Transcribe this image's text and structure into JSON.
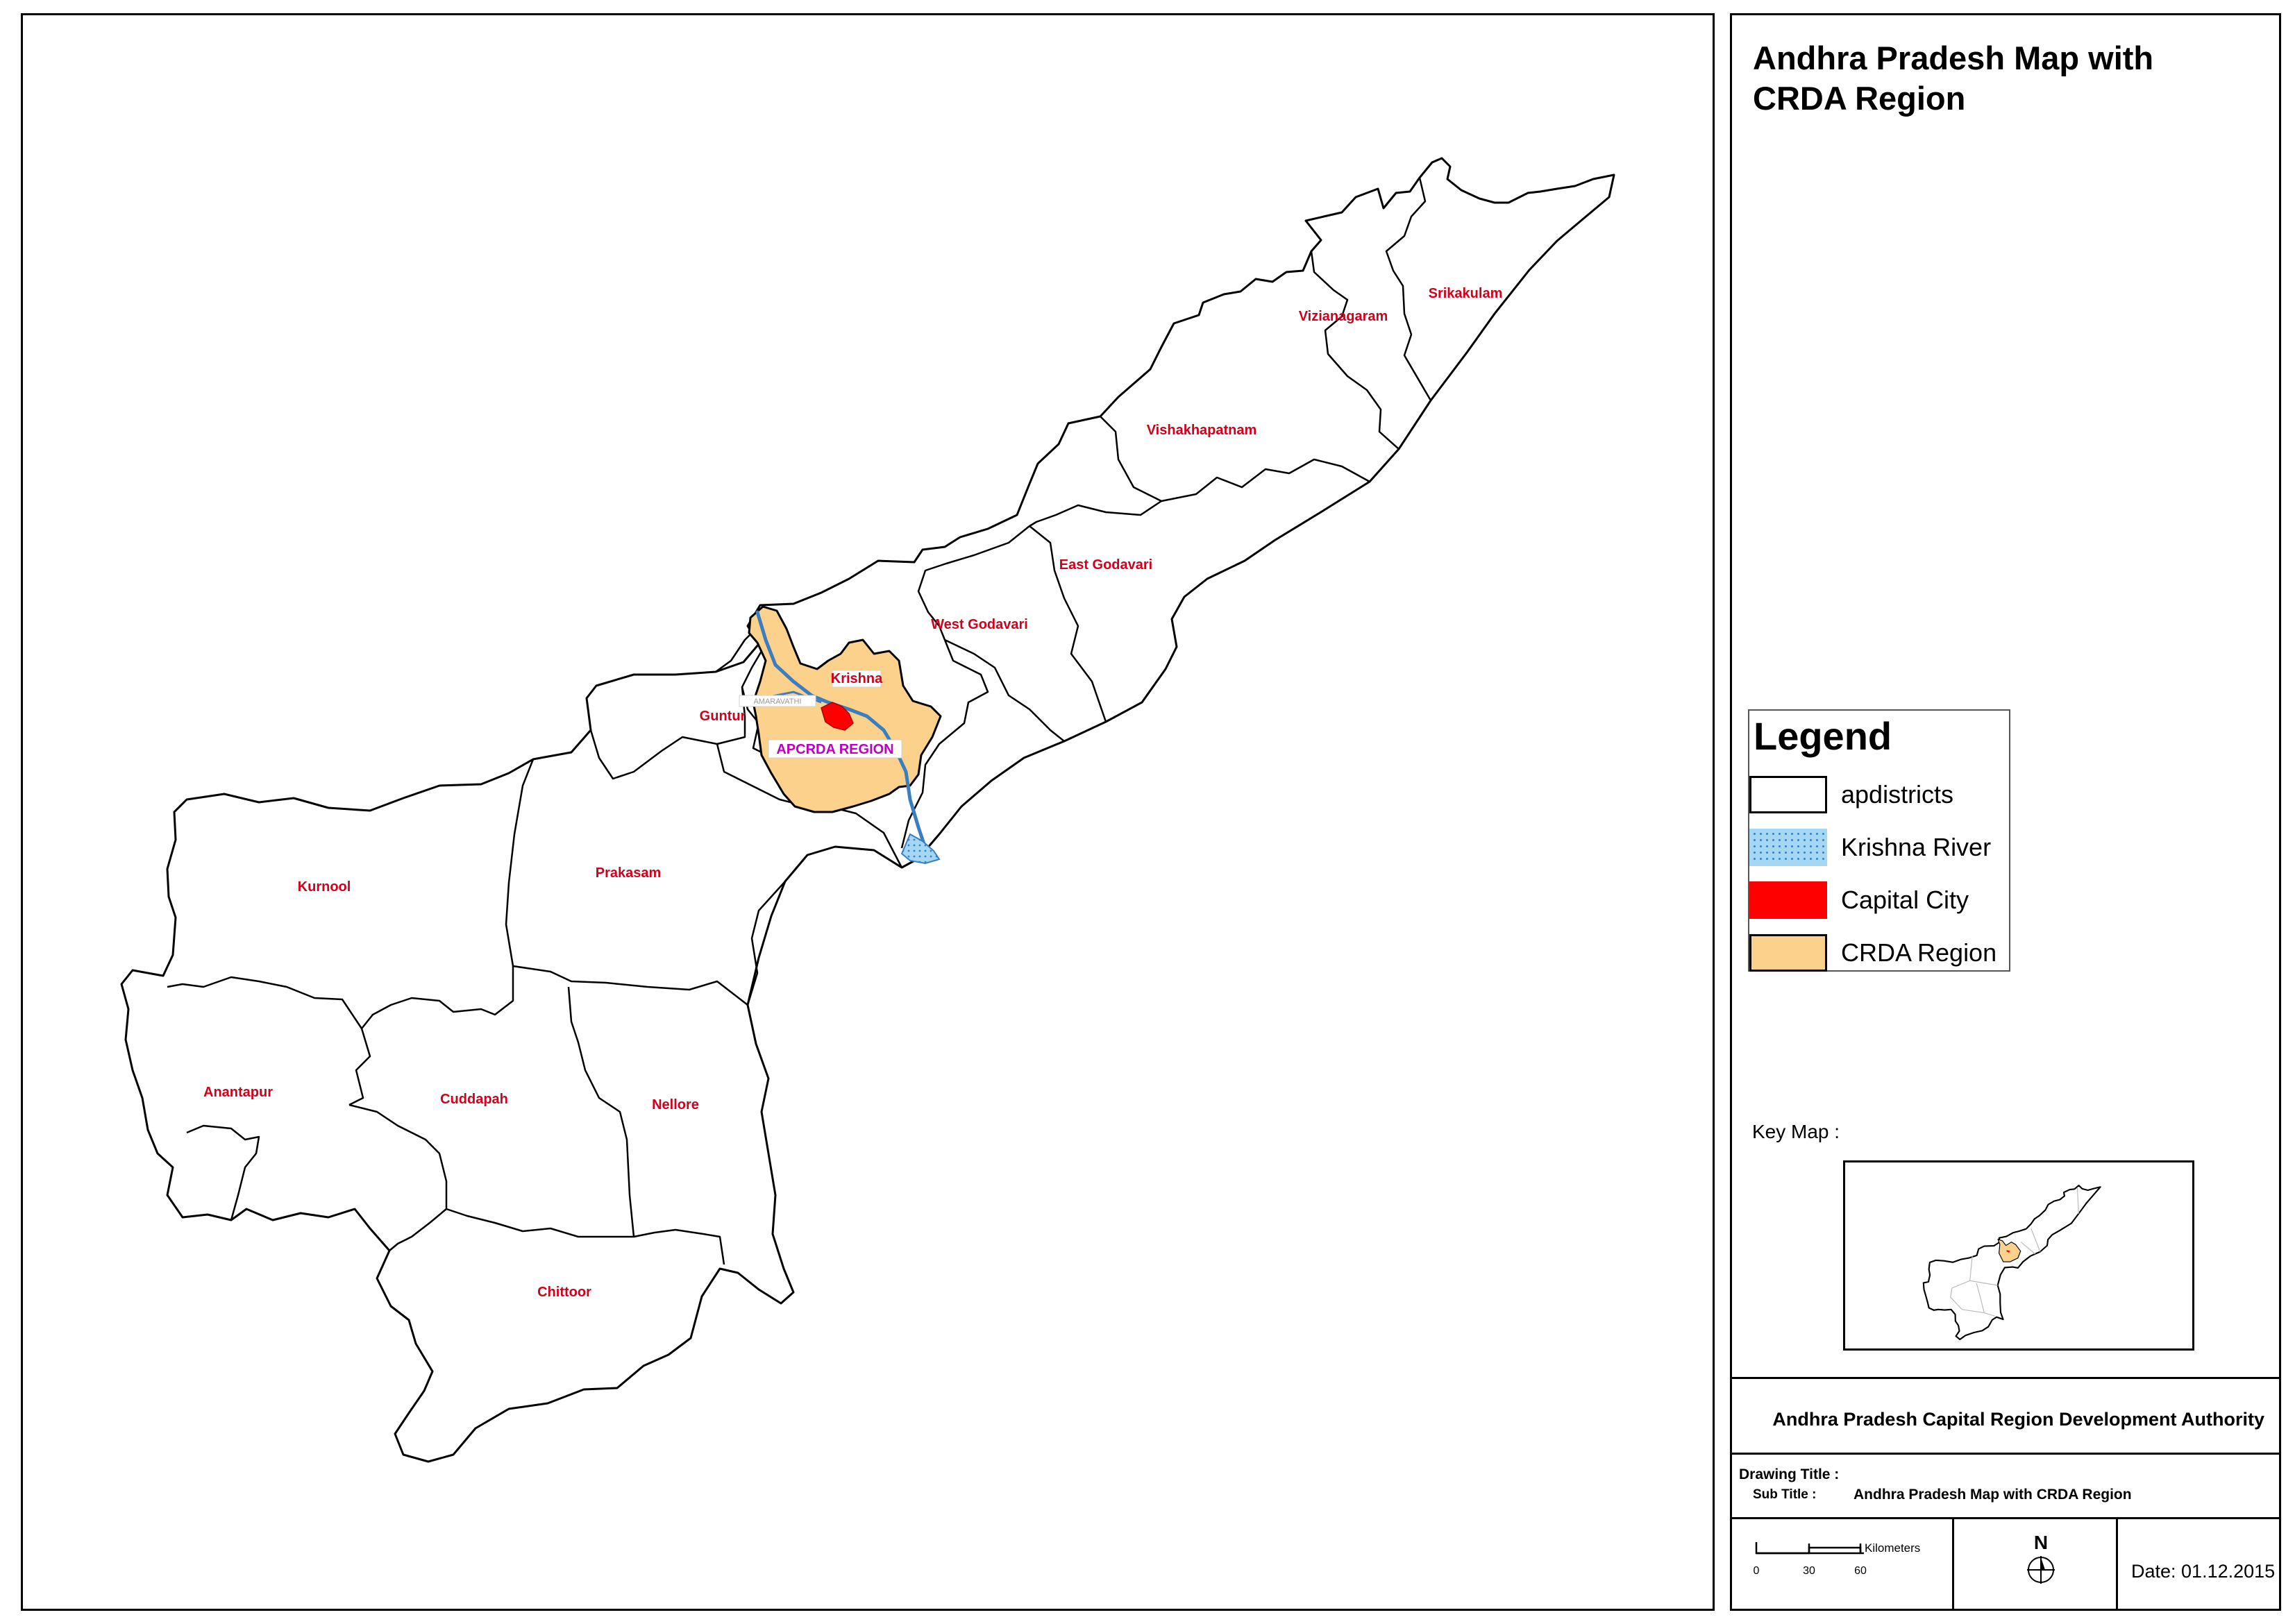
{
  "map": {
    "title": "Andhra Pradesh Map with CRDA Region",
    "districts": [
      {
        "name": "Srikakulam"
      },
      {
        "name": "Vizianagaram"
      },
      {
        "name": "Vishakhapatnam"
      },
      {
        "name": "East Godavari"
      },
      {
        "name": "West Godavari"
      },
      {
        "name": "Krishna"
      },
      {
        "name": "Guntur"
      },
      {
        "name": "Prakasam"
      },
      {
        "name": "Kurnool"
      },
      {
        "name": "Anantapur"
      },
      {
        "name": "Cuddapah"
      },
      {
        "name": "Nellore"
      },
      {
        "name": "Chittoor"
      }
    ],
    "region_label": "APCRDA REGION",
    "capital_label": "AMARAVATHI",
    "colors": {
      "district_label": "#d0021b",
      "region_label": "#c000c0",
      "crda_fill": "#fbd18c",
      "capital_fill": "#ff0000",
      "river": "#3a7ec0",
      "outline": "#000000"
    }
  },
  "legend": {
    "title": "Legend",
    "items": [
      {
        "label": "apdistricts"
      },
      {
        "label": "Krishna River"
      },
      {
        "label": "Capital City"
      },
      {
        "label": "CRDA Region"
      }
    ]
  },
  "keymap": {
    "label": "Key Map :"
  },
  "footer": {
    "authority": "Andhra Pradesh Capital Region Development Authority",
    "drawing_title_label": "Drawing Title :",
    "sub_title_label": "Sub Title :",
    "sub_title_value": "Andhra Pradesh Map with CRDA Region",
    "scale": {
      "unit": "Kilometers",
      "ticks": [
        "0",
        "30",
        "60"
      ]
    },
    "north_label": "N",
    "date": "Date: 01.12.2015"
  }
}
